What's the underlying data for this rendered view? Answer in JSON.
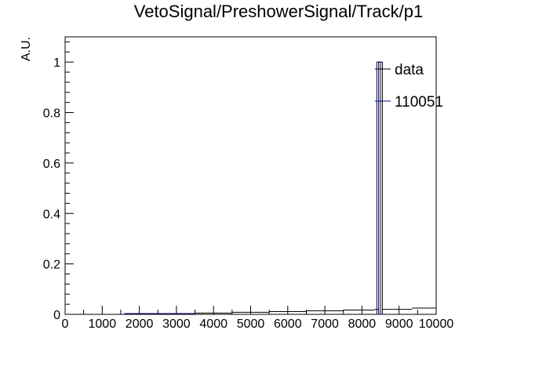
{
  "chart_data": {
    "type": "bar",
    "title": "VetoSignal/PreshowerSignal/Track/p1",
    "xlabel": "",
    "ylabel": "A.U.",
    "xlim": [
      0,
      10000
    ],
    "ylim": [
      0,
      1.1
    ],
    "x_ticks": [
      0,
      1000,
      2000,
      3000,
      4000,
      5000,
      6000,
      7000,
      8000,
      9000,
      10000
    ],
    "x_tick_labels": [
      "0",
      "1000",
      "2000",
      "3000",
      "4000",
      "5000",
      "6000",
      "7000",
      "8000",
      "9000",
      "10000"
    ],
    "y_ticks": [
      0,
      0.2,
      0.4,
      0.6,
      0.8,
      1.0
    ],
    "y_tick_labels": [
      "0",
      "0.2",
      "0.4",
      "0.6",
      "0.8",
      "1"
    ],
    "grid": false,
    "legend_position": "top-right",
    "series": [
      {
        "name": "data",
        "color": "#000000",
        "style": "step",
        "bins": [
          {
            "x0": 0,
            "x1": 1600,
            "y": 0.0
          },
          {
            "x0": 1600,
            "x1": 3500,
            "y": 0.002
          },
          {
            "x0": 3500,
            "x1": 4500,
            "y": 0.005
          },
          {
            "x0": 4500,
            "x1": 5500,
            "y": 0.008
          },
          {
            "x0": 5500,
            "x1": 6500,
            "y": 0.011
          },
          {
            "x0": 6500,
            "x1": 7500,
            "y": 0.014
          },
          {
            "x0": 7500,
            "x1": 8350,
            "y": 0.017
          },
          {
            "x0": 8350,
            "x1": 8450,
            "y": 0.02
          },
          {
            "x0": 8450,
            "x1": 8550,
            "y": 1.0
          },
          {
            "x0": 8550,
            "x1": 9350,
            "y": 0.02
          },
          {
            "x0": 9350,
            "x1": 10000,
            "y": 0.025
          }
        ]
      },
      {
        "name": "110051",
        "color": "#000080",
        "style": "step",
        "bins": [
          {
            "x0": 1600,
            "x1": 3500,
            "y": 0.003
          },
          {
            "x0": 8400,
            "x1": 8500,
            "y": 1.0
          }
        ]
      }
    ]
  }
}
